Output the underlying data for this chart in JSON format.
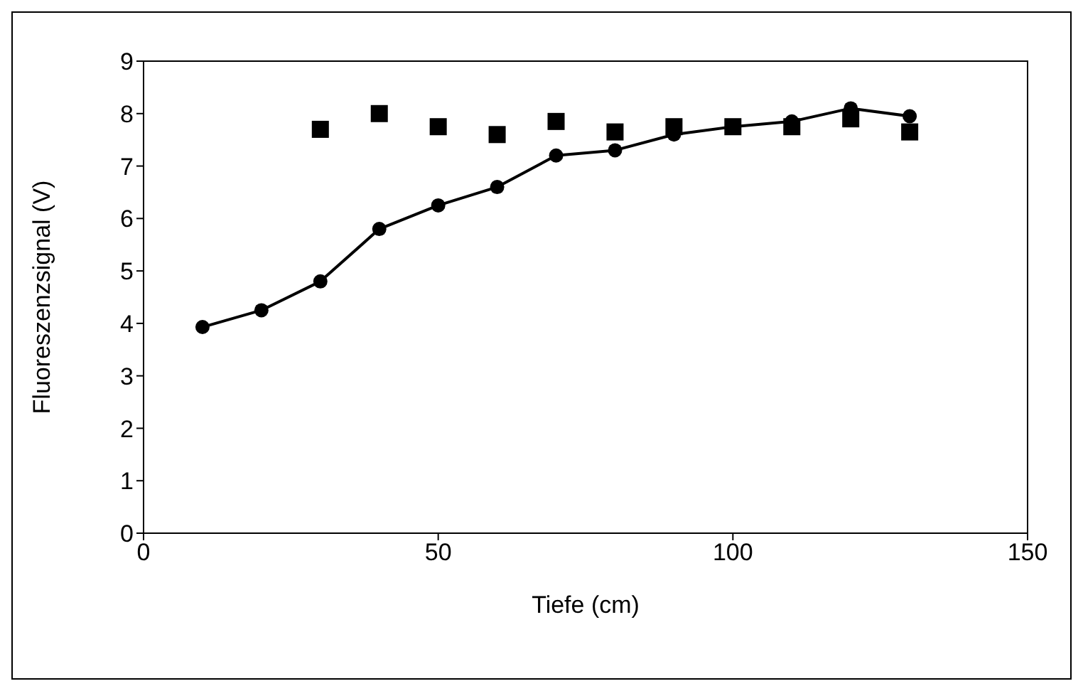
{
  "chart_data": {
    "type": "line",
    "xlabel": "Tiefe (cm)",
    "ylabel": "Fluoreszenzsignal (V)",
    "xlim": [
      0,
      150
    ],
    "xticks": [
      0,
      50,
      100,
      150
    ],
    "ylim": [
      0,
      9
    ],
    "yticks": [
      0,
      1,
      2,
      3,
      4,
      5,
      6,
      7,
      8,
      9
    ],
    "grid": false,
    "legend": false,
    "series": [
      {
        "marker": "circle",
        "color": "#000000",
        "x": [
          10,
          20,
          30,
          40,
          50,
          60,
          70,
          80,
          90,
          100,
          110,
          120,
          130
        ],
        "values": [
          3.93,
          4.25,
          4.8,
          5.8,
          6.25,
          6.6,
          7.2,
          7.3,
          7.6,
          7.75,
          7.85,
          8.1,
          7.95
        ]
      },
      {
        "type": "scatter",
        "marker": "square",
        "color": "#000000",
        "x": [
          30,
          40,
          50,
          60,
          70,
          80,
          90,
          100,
          110,
          120,
          130
        ],
        "values": [
          7.7,
          8.0,
          7.75,
          7.6,
          7.85,
          7.65,
          7.75,
          7.75,
          7.75,
          7.9,
          7.65
        ]
      }
    ]
  }
}
